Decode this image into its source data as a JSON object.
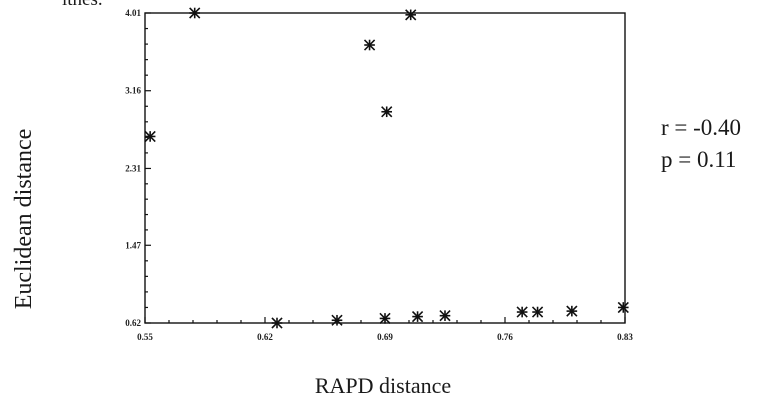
{
  "page": {
    "top_fragment": "ithes."
  },
  "stats": {
    "r": "r = -0.40",
    "p": "p =  0.11"
  },
  "chart_data": {
    "type": "scatter",
    "xlabel": "RAPD distance",
    "ylabel": "Euclidean distance",
    "xlim": [
      0.55,
      0.83
    ],
    "ylim": [
      0.62,
      4.01
    ],
    "x_ticks": [
      "0.55",
      "0.62",
      "0.69",
      "0.76",
      "0.83"
    ],
    "x_tick_values": [
      0.55,
      0.62,
      0.69,
      0.76,
      0.83
    ],
    "y_ticks": [
      "0.62",
      "1.47",
      "2.31",
      "3.16",
      "4.01"
    ],
    "y_tick_values": [
      0.62,
      1.47,
      2.31,
      3.16,
      4.01
    ],
    "grid": false,
    "points": [
      {
        "x": 0.553,
        "y": 2.66
      },
      {
        "x": 0.579,
        "y": 4.01
      },
      {
        "x": 0.681,
        "y": 3.66
      },
      {
        "x": 0.691,
        "y": 2.93
      },
      {
        "x": 0.705,
        "y": 3.99
      },
      {
        "x": 0.627,
        "y": 0.62
      },
      {
        "x": 0.662,
        "y": 0.65
      },
      {
        "x": 0.69,
        "y": 0.67
      },
      {
        "x": 0.709,
        "y": 0.69
      },
      {
        "x": 0.725,
        "y": 0.7
      },
      {
        "x": 0.77,
        "y": 0.74
      },
      {
        "x": 0.779,
        "y": 0.74
      },
      {
        "x": 0.799,
        "y": 0.75
      },
      {
        "x": 0.829,
        "y": 0.79
      }
    ]
  }
}
